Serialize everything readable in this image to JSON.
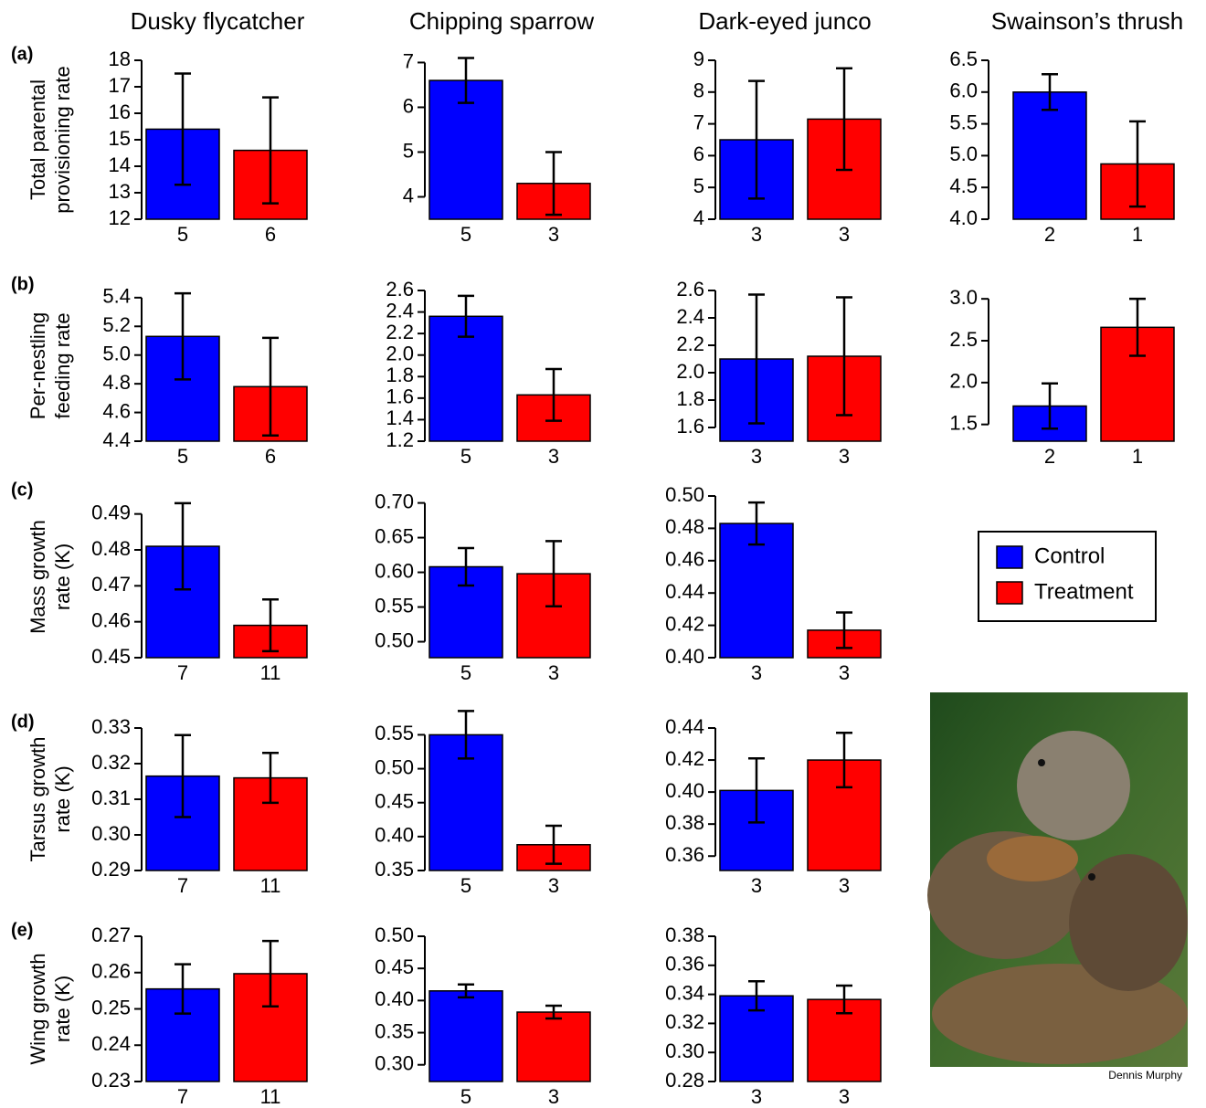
{
  "columns": [
    "Dusky flycatcher",
    "Chipping sparrow",
    "Dark-eyed junco",
    "Swainson’s thrush"
  ],
  "rows": [
    {
      "label": "(a)",
      "ylabel": [
        "Total parental",
        "provisioning rate"
      ]
    },
    {
      "label": "(b)",
      "ylabel": [
        "Per-nestling",
        "feeding rate"
      ]
    },
    {
      "label": "(c)",
      "ylabel": [
        "Mass growth",
        "rate (K)"
      ]
    },
    {
      "label": "(d)",
      "ylabel": [
        "Tarsus growth",
        "rate (K)"
      ]
    },
    {
      "label": "(e)",
      "ylabel": [
        "Wing growth",
        "rate (K)"
      ]
    }
  ],
  "legend": [
    {
      "name": "Control",
      "color": "#0000ff"
    },
    {
      "name": "Treatment",
      "color": "#ff0000"
    }
  ],
  "photo_credit": "Dennis Murphy",
  "chart_data": [
    {
      "type": "bar",
      "categories": [
        "5",
        "6"
      ],
      "values": [
        15.4,
        14.6
      ],
      "errors": [
        2.1,
        2.0
      ],
      "ylim": [
        12,
        18
      ],
      "yticks": [
        12,
        13,
        14,
        15,
        16,
        17,
        18
      ]
    },
    {
      "type": "bar",
      "categories": [
        "5",
        "3"
      ],
      "values": [
        6.6,
        4.3
      ],
      "errors": [
        0.5,
        0.7
      ],
      "ylim": [
        3.5,
        7.05
      ],
      "yticks": [
        4,
        5,
        6,
        7
      ]
    },
    {
      "type": "bar",
      "categories": [
        "3",
        "3"
      ],
      "values": [
        6.5,
        7.15
      ],
      "errors": [
        1.85,
        1.6
      ],
      "ylim": [
        4,
        9
      ],
      "yticks": [
        4,
        5,
        6,
        7,
        8,
        9
      ]
    },
    {
      "type": "bar",
      "categories": [
        "2",
        "1"
      ],
      "values": [
        6.0,
        4.87
      ],
      "errors": [
        0.28,
        0.67
      ],
      "ylim": [
        4,
        6.5
      ],
      "yticks": [
        {
          "value": 4,
          "label": "4.0"
        },
        4.5,
        {
          "value": 5,
          "label": "5.0"
        },
        5.5,
        {
          "value": 6,
          "label": "6.0"
        },
        6.5
      ]
    },
    {
      "type": "bar",
      "categories": [
        "5",
        "6"
      ],
      "values": [
        5.13,
        4.78
      ],
      "errors": [
        0.3,
        0.34
      ],
      "ylim": [
        4.4,
        5.45
      ],
      "yticks": [
        4.4,
        4.6,
        4.8,
        {
          "value": 5,
          "label": "5.0"
        },
        5.2,
        5.4
      ]
    },
    {
      "type": "bar",
      "categories": [
        "5",
        "3"
      ],
      "values": [
        2.36,
        1.63
      ],
      "errors": [
        0.19,
        0.24
      ],
      "ylim": [
        1.2,
        2.6
      ],
      "yticks": [
        1.2,
        1.4,
        1.6,
        1.8,
        {
          "value": 2,
          "label": "2.0"
        },
        2.2,
        2.4,
        2.6
      ]
    },
    {
      "type": "bar",
      "categories": [
        "3",
        "3"
      ],
      "values": [
        2.1,
        2.12
      ],
      "errors": [
        0.47,
        0.43
      ],
      "ylim": [
        1.5,
        2.6
      ],
      "yticks": [
        1.6,
        1.8,
        {
          "value": 2,
          "label": "2.0"
        },
        2.2,
        2.4,
        2.6
      ]
    },
    {
      "type": "bar",
      "categories": [
        "2",
        "1"
      ],
      "values": [
        1.72,
        2.66
      ],
      "errors": [
        0.27,
        0.34
      ],
      "ylim": [
        1.3,
        3.1
      ],
      "yticks": [
        1.5,
        {
          "value": 2,
          "label": "2.0"
        },
        2.5,
        {
          "value": 3,
          "label": "3.0"
        }
      ]
    },
    {
      "type": "bar",
      "categories": [
        "7",
        "11"
      ],
      "values": [
        0.481,
        0.459
      ],
      "errors": [
        0.012,
        0.0072
      ],
      "ylim": [
        0.45,
        0.495
      ],
      "yticks": [
        0.45,
        0.46,
        0.47,
        0.48,
        0.49
      ]
    },
    {
      "type": "bar",
      "categories": [
        "5",
        "3"
      ],
      "values": [
        0.608,
        0.598
      ],
      "errors": [
        0.027,
        0.047
      ],
      "ylim": [
        0.477,
        0.71
      ],
      "yticks": [
        {
          "value": 0.5,
          "label": "0.50"
        },
        0.55,
        {
          "value": 0.6,
          "label": "0.60"
        },
        0.65,
        {
          "value": 0.7,
          "label": "0.70"
        }
      ]
    },
    {
      "type": "bar",
      "categories": [
        "3",
        "3"
      ],
      "values": [
        0.483,
        0.417
      ],
      "errors": [
        0.013,
        0.011
      ],
      "ylim": [
        0.4,
        0.5
      ],
      "yticks": [
        {
          "value": 0.4,
          "label": "0.40"
        },
        0.42,
        0.44,
        0.46,
        0.48,
        {
          "value": 0.5,
          "label": "0.50"
        }
      ]
    },
    {
      "type": "bar",
      "categories": [
        "7",
        "11"
      ],
      "values": [
        0.3165,
        0.316
      ],
      "errors": [
        0.0115,
        0.007
      ],
      "ylim": [
        0.29,
        0.33
      ],
      "yticks": [
        0.29,
        {
          "value": 0.3,
          "label": "0.30"
        },
        0.31,
        0.32,
        0.33
      ]
    },
    {
      "type": "bar",
      "categories": [
        "5",
        "3"
      ],
      "values": [
        0.55,
        0.388
      ],
      "errors": [
        0.035,
        0.028
      ],
      "ylim": [
        0.35,
        0.56
      ],
      "yticks": [
        0.35,
        {
          "value": 0.4,
          "label": "0.40"
        },
        0.45,
        {
          "value": 0.5,
          "label": "0.50"
        },
        0.55
      ]
    },
    {
      "type": "bar",
      "categories": [
        "3",
        "3"
      ],
      "values": [
        0.401,
        0.42
      ],
      "errors": [
        0.02,
        0.017
      ],
      "ylim": [
        0.351,
        0.44
      ],
      "yticks": [
        0.36,
        0.38,
        {
          "value": 0.4,
          "label": "0.40"
        },
        0.42,
        0.44
      ]
    },
    {
      "type": "bar",
      "categories": [
        "7",
        "11"
      ],
      "values": [
        0.2555,
        0.2597
      ],
      "errors": [
        0.0068,
        0.009
      ],
      "ylim": [
        0.23,
        0.27
      ],
      "yticks": [
        0.23,
        0.24,
        0.25,
        0.26,
        0.27
      ]
    },
    {
      "type": "bar",
      "categories": [
        "5",
        "3"
      ],
      "values": [
        0.415,
        0.382
      ],
      "errors": [
        0.01,
        0.01
      ],
      "ylim": [
        0.274,
        0.5
      ],
      "yticks": [
        {
          "value": 0.3,
          "label": "0.30"
        },
        0.35,
        {
          "value": 0.4,
          "label": "0.40"
        },
        0.45,
        {
          "value": 0.5,
          "label": "0.50"
        }
      ]
    },
    {
      "type": "bar",
      "categories": [
        "3",
        "3"
      ],
      "values": [
        0.339,
        0.3365
      ],
      "errors": [
        0.01,
        0.0095
      ],
      "ylim": [
        0.28,
        0.38
      ],
      "yticks": [
        0.28,
        {
          "value": 0.3,
          "label": "0.30"
        },
        0.32,
        0.34,
        0.36,
        0.38
      ]
    }
  ]
}
